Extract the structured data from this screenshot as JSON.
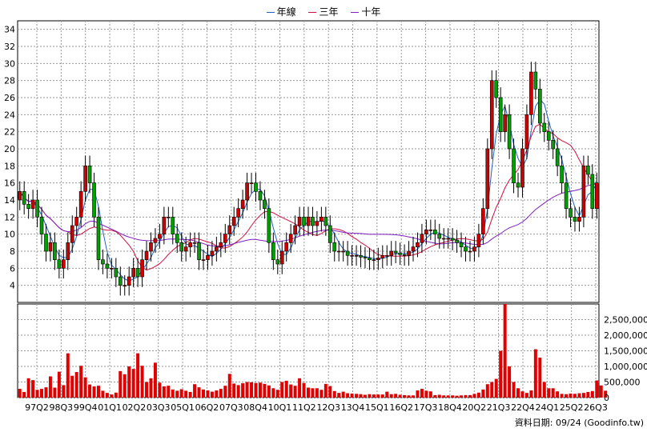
{
  "legend": [
    {
      "label": "年線",
      "color": "#2060c0"
    },
    {
      "label": "三年",
      "color": "#d01040"
    },
    {
      "label": "十年",
      "color": "#8020c0"
    }
  ],
  "footer": "資料日期: 09/24  (Goodinfo.tw)",
  "chart_data": [
    {
      "type": "candlestick",
      "title": "",
      "ylim": [
        2,
        35
      ],
      "yticks": [
        4,
        6,
        8,
        10,
        12,
        14,
        16,
        18,
        20,
        22,
        24,
        26,
        28,
        30,
        32,
        34
      ],
      "grid": true,
      "legend_position": "top-center",
      "x_tick_labels": [
        "97Q2",
        "98Q3",
        "99Q4",
        "01Q1",
        "02Q2",
        "03Q3",
        "05Q1",
        "06Q2",
        "07Q3",
        "08Q4",
        "10Q1",
        "11Q2",
        "12Q3",
        "13Q4",
        "15Q1",
        "16Q2",
        "17Q3",
        "18Q4",
        "20Q2",
        "21Q3",
        "22Q4",
        "24Q1",
        "25Q2",
        "26Q3"
      ],
      "closes": [
        15,
        13.5,
        13,
        14,
        12,
        10,
        8,
        9,
        7,
        6,
        7,
        9,
        11,
        12,
        15,
        18,
        16,
        12,
        7,
        6.5,
        6,
        6,
        5,
        4,
        4,
        5,
        6,
        5,
        7,
        8,
        9,
        9.5,
        10,
        12,
        12,
        10,
        9,
        8,
        8.5,
        9,
        9,
        7,
        7,
        7.5,
        8,
        8.5,
        9,
        10,
        11,
        12,
        13,
        14,
        16,
        16,
        15,
        14,
        13,
        9,
        7,
        6.5,
        8,
        9,
        10,
        11,
        12,
        11,
        12,
        11,
        11.5,
        12,
        11,
        9,
        8,
        8,
        8,
        7.5,
        7.5,
        7.5,
        7.3,
        7.2,
        7,
        7,
        7.2,
        7.5,
        7.5,
        8,
        7.8,
        7.6,
        7.5,
        8,
        8.5,
        9,
        10,
        10.5,
        10.5,
        10,
        9.5,
        9.5,
        9.5,
        9.3,
        9,
        8.5,
        8,
        8,
        8.5,
        10,
        13,
        20,
        28,
        26,
        22,
        24,
        20,
        16,
        15.5,
        20,
        24,
        29,
        27,
        23,
        22,
        21,
        20,
        18,
        16,
        13,
        12,
        11.5,
        12,
        18,
        17,
        13,
        16
      ],
      "opens": [
        14,
        15,
        13.5,
        13,
        14,
        12,
        10,
        8,
        9,
        7,
        6,
        7,
        9,
        11,
        12,
        15,
        18,
        16,
        12,
        7,
        6.5,
        6,
        6,
        5,
        4,
        4,
        5,
        6,
        5,
        7,
        8,
        9,
        9.5,
        10,
        12,
        12,
        10,
        9,
        8,
        8.5,
        9,
        9,
        7,
        7,
        7.5,
        8,
        8.5,
        9,
        10,
        11,
        12,
        13,
        14,
        16,
        16,
        15,
        14,
        13,
        9,
        7,
        6.5,
        8,
        9,
        10,
        11,
        12,
        11,
        12,
        11,
        11.5,
        12,
        11,
        9,
        8,
        8,
        8,
        7.5,
        7.5,
        7.5,
        7.3,
        7.2,
        7,
        7,
        7.2,
        7.5,
        7.5,
        8,
        7.8,
        7.6,
        7.5,
        8,
        8.5,
        9,
        10,
        10.5,
        10.5,
        10,
        9.5,
        9.5,
        9.5,
        9.3,
        9,
        8.5,
        8,
        8,
        8.5,
        10,
        13,
        20,
        28,
        26,
        22,
        24,
        20,
        16,
        15.5,
        20,
        24,
        29,
        27,
        23,
        22,
        21,
        20,
        18,
        16,
        13,
        12,
        11.5,
        12,
        18,
        17,
        13
      ],
      "series_names": [
        "年線",
        "三年",
        "十年"
      ]
    },
    {
      "type": "bar",
      "ylim": [
        0,
        3000000
      ],
      "yticks": [
        0,
        500000,
        1000000,
        1500000,
        2000000,
        2500000
      ],
      "ytick_labels": [
        "0",
        "500,000",
        "1,000,000",
        "1,500,000",
        "2,000,000",
        "2,500,000"
      ],
      "volumes": [
        280000,
        180000,
        620000,
        560000,
        250000,
        280000,
        330000,
        680000,
        320000,
        830000,
        400000,
        1420000,
        700000,
        820000,
        1020000,
        650000,
        420000,
        360000,
        380000,
        220000,
        150000,
        100000,
        160000,
        850000,
        750000,
        1000000,
        920000,
        1420000,
        1020000,
        500000,
        620000,
        1120000,
        480000,
        360000,
        380000,
        260000,
        220000,
        270000,
        220000,
        180000,
        430000,
        330000,
        260000,
        230000,
        190000,
        230000,
        280000,
        380000,
        760000,
        450000,
        400000,
        460000,
        500000,
        490000,
        470000,
        480000,
        440000,
        390000,
        300000,
        250000,
        500000,
        540000,
        420000,
        380000,
        620000,
        470000,
        320000,
        300000,
        300000,
        250000,
        440000,
        370000,
        210000,
        150000,
        190000,
        140000,
        130000,
        120000,
        110000,
        90000,
        110000,
        100000,
        100000,
        100000,
        190000,
        110000,
        120000,
        90000,
        80000,
        70000,
        70000,
        230000,
        280000,
        220000,
        200000,
        80000,
        90000,
        70000,
        70000,
        70000,
        60000,
        70000,
        80000,
        80000,
        120000,
        160000,
        260000,
        430000,
        500000,
        600000,
        1500000,
        3000000,
        1000000,
        500000,
        300000,
        200000,
        150000,
        230000,
        1550000,
        1280000,
        500000,
        300000,
        300000,
        200000,
        120000,
        110000,
        130000,
        120000,
        140000,
        150000,
        180000,
        210000,
        550000,
        390000,
        220000
      ]
    }
  ]
}
